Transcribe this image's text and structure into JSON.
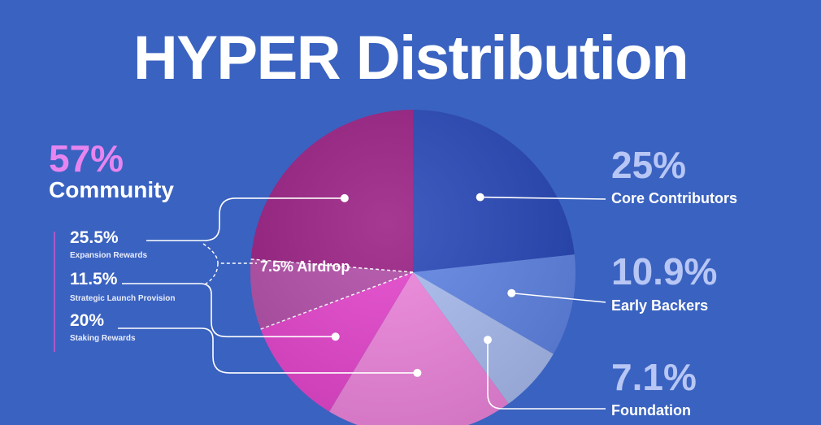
{
  "title": "HYPER Distribution",
  "chart_data": {
    "type": "pie",
    "title": "HYPER Distribution",
    "slices": [
      {
        "label": "Core Contributors",
        "pct_text": "25%",
        "value": 25,
        "color": "#2747b8"
      },
      {
        "label": "Early Backers",
        "pct_text": "10.9%",
        "value": 10.9,
        "color": "#5f84e4"
      },
      {
        "label": "Foundation",
        "pct_text": "7.1%",
        "value": 7.1,
        "color": "#a9bcf0"
      },
      {
        "label": "Staking Rewards",
        "pct_text": "20%",
        "value": 20,
        "color": "#ee84dc"
      },
      {
        "label": "Strategic Launch Provision",
        "pct_text": "11.5%",
        "value": 11.5,
        "color": "#e444cc"
      },
      {
        "label": "Airdrop",
        "pct_text": "7.5%",
        "value": 7.5,
        "color": "#b24da8"
      },
      {
        "label": "Expansion Rewards",
        "pct_text": "25.5%",
        "value": 25.5,
        "color": "#9a1f83"
      }
    ],
    "groups": [
      {
        "label": "Community",
        "pct_text": "57%",
        "value": 57,
        "members": [
          "Expansion Rewards",
          "Strategic Launch Provision",
          "Staking Rewards"
        ]
      }
    ],
    "airdrop_label": "7.5% Airdrop",
    "colors": {
      "background": "#3a62c0",
      "community_accent": "#e785f0",
      "right_pct": "#b7c6f4"
    }
  }
}
